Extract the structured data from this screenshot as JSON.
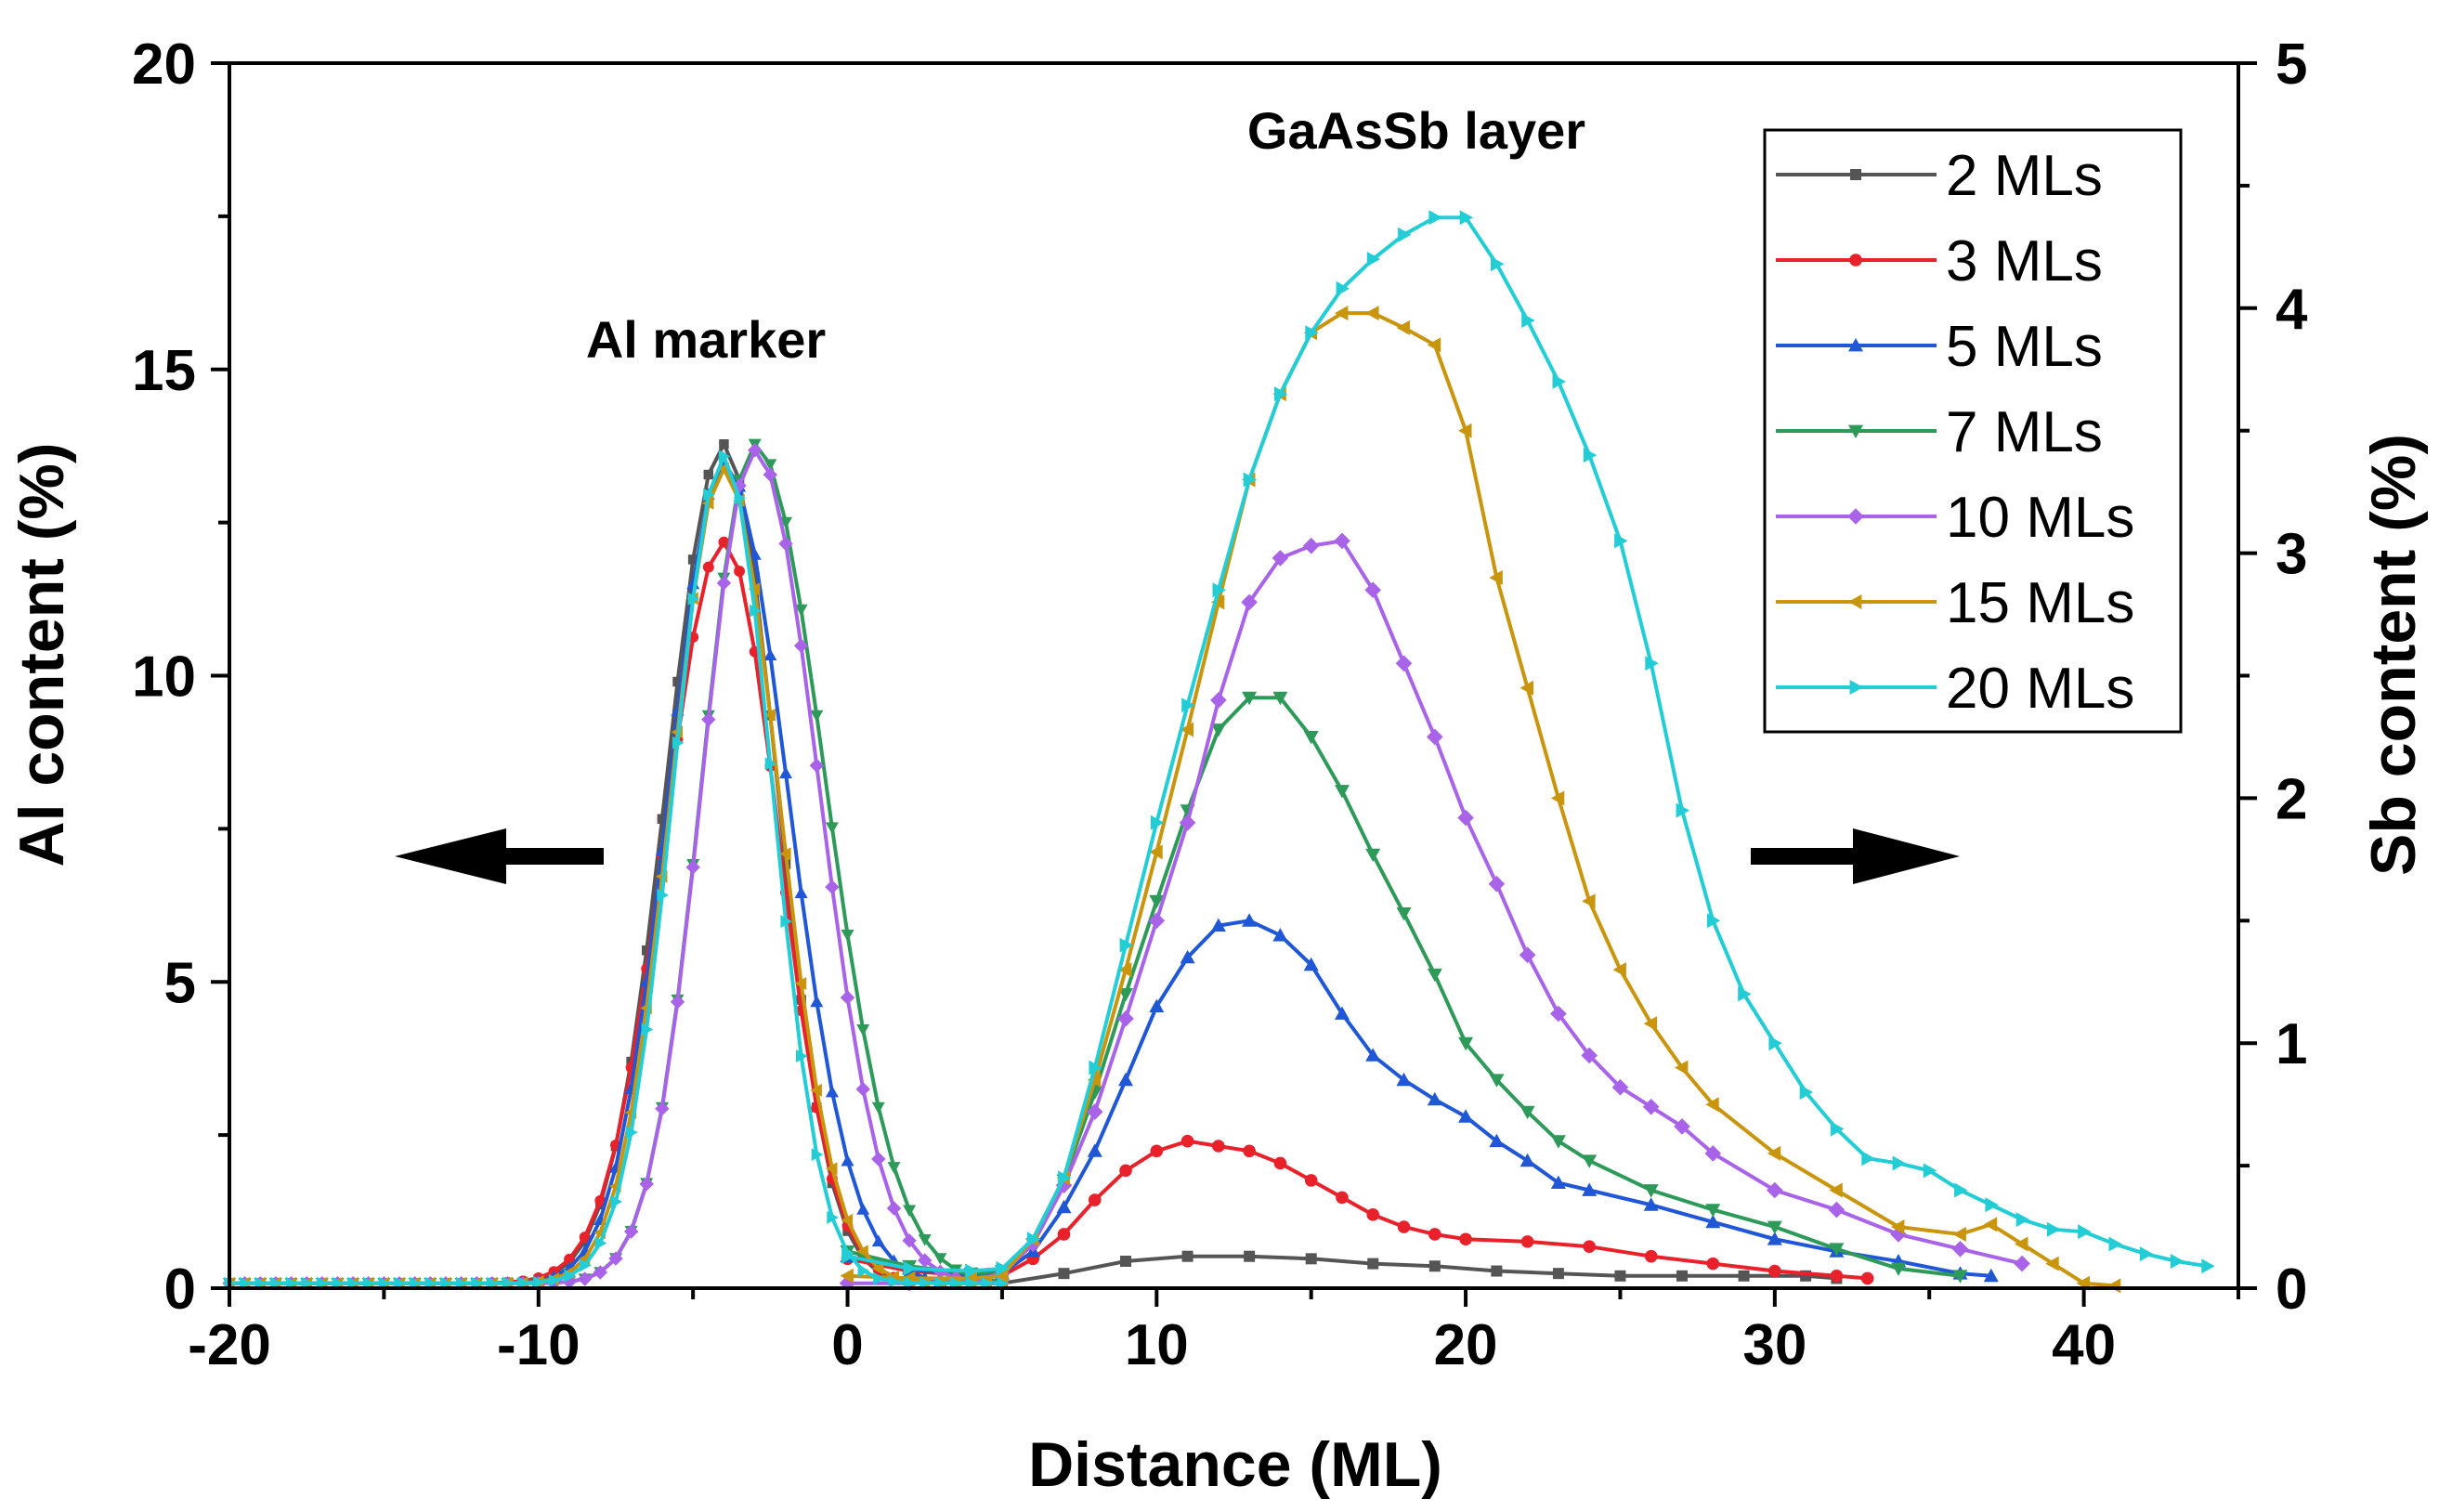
{
  "chart_data": {
    "type": "line",
    "title": "",
    "xlabel": "Distance (ML)",
    "ylabel_left": "Al content (%)",
    "ylabel_right": "Sb content (%)",
    "xlim": [
      -20,
      45
    ],
    "ylim_left": [
      0,
      20
    ],
    "ylim_right": [
      0,
      5
    ],
    "x_ticks": [
      -20,
      -10,
      0,
      10,
      20,
      30,
      40
    ],
    "y_left_ticks": [
      0,
      5,
      10,
      15,
      20
    ],
    "y_right_ticks": [
      0,
      1,
      2,
      3,
      4,
      5
    ],
    "legend_position": "top-right",
    "annotations": [
      {
        "text": "Al marker"
      },
      {
        "text": "GaAsSb layer"
      }
    ],
    "arrows": [
      {
        "direction": "left",
        "meaning": "Al content uses left axis"
      },
      {
        "direction": "right",
        "meaning": "Sb content uses right axis"
      }
    ],
    "series": [
      {
        "name": "2 MLs",
        "color": "#555555",
        "marker": "square",
        "al_marker": {
          "peak_x": -4,
          "peak": 13.7,
          "w_left": 2.6,
          "w_right": 2.4,
          "x_start": -20,
          "x_end": 5
        },
        "sb_layer": [
          [
            5,
            0.02
          ],
          [
            7,
            0.06
          ],
          [
            9,
            0.11
          ],
          [
            11,
            0.13
          ],
          [
            13,
            0.13
          ],
          [
            15,
            0.12
          ],
          [
            17,
            0.1
          ],
          [
            19,
            0.09
          ],
          [
            21,
            0.07
          ],
          [
            23,
            0.06
          ],
          [
            25,
            0.05
          ],
          [
            27,
            0.05
          ],
          [
            29,
            0.05
          ],
          [
            31,
            0.05
          ],
          [
            32,
            0.04
          ]
        ]
      },
      {
        "name": "3 MLs",
        "color": "#e8212b",
        "marker": "circle",
        "al_marker": {
          "peak_x": -4,
          "peak": 12.1,
          "w_left": 2.7,
          "w_right": 2.5,
          "x_start": -20,
          "x_end": 5
        },
        "sb_layer": [
          [
            0,
            0.12
          ],
          [
            2,
            0.07
          ],
          [
            4,
            0.05
          ],
          [
            5,
            0.05
          ],
          [
            6,
            0.12
          ],
          [
            7,
            0.22
          ],
          [
            8,
            0.36
          ],
          [
            9,
            0.48
          ],
          [
            10,
            0.56
          ],
          [
            11,
            0.6
          ],
          [
            12,
            0.58
          ],
          [
            13,
            0.56
          ],
          [
            14,
            0.51
          ],
          [
            15,
            0.44
          ],
          [
            16,
            0.37
          ],
          [
            17,
            0.3
          ],
          [
            18,
            0.25
          ],
          [
            19,
            0.22
          ],
          [
            20,
            0.2
          ],
          [
            22,
            0.19
          ],
          [
            24,
            0.17
          ],
          [
            26,
            0.13
          ],
          [
            28,
            0.1
          ],
          [
            30,
            0.07
          ],
          [
            32,
            0.05
          ],
          [
            33,
            0.04
          ]
        ]
      },
      {
        "name": "5 MLs",
        "color": "#1f57d6",
        "marker": "triangle-up",
        "al_marker": {
          "peak_x": -4,
          "peak": 13.4,
          "w_left": 2.5,
          "w_right": 2.9,
          "x_start": -20,
          "x_end": 5
        },
        "sb_layer": [
          [
            0,
            0.13
          ],
          [
            2,
            0.08
          ],
          [
            4,
            0.05
          ],
          [
            5,
            0.06
          ],
          [
            6,
            0.15
          ],
          [
            7,
            0.33
          ],
          [
            8,
            0.56
          ],
          [
            9,
            0.85
          ],
          [
            10,
            1.15
          ],
          [
            11,
            1.35
          ],
          [
            12,
            1.48
          ],
          [
            13,
            1.5
          ],
          [
            14,
            1.44
          ],
          [
            15,
            1.32
          ],
          [
            16,
            1.12
          ],
          [
            17,
            0.95
          ],
          [
            18,
            0.85
          ],
          [
            19,
            0.77
          ],
          [
            20,
            0.7
          ],
          [
            21,
            0.6
          ],
          [
            22,
            0.52
          ],
          [
            23,
            0.43
          ],
          [
            24,
            0.4
          ],
          [
            26,
            0.34
          ],
          [
            28,
            0.27
          ],
          [
            30,
            0.2
          ],
          [
            32,
            0.15
          ],
          [
            34,
            0.11
          ],
          [
            36,
            0.06
          ],
          [
            37,
            0.05
          ]
        ]
      },
      {
        "name": "7 MLs",
        "color": "#2e9a5a",
        "marker": "triangle-down",
        "al_marker": {
          "peak_x": -3,
          "peak": 13.7,
          "w_left": 2.4,
          "w_right": 3.2,
          "x_start": -20,
          "x_end": 5
        },
        "sb_layer": [
          [
            0,
            0.15
          ],
          [
            2,
            0.09
          ],
          [
            4,
            0.06
          ],
          [
            5,
            0.07
          ],
          [
            6,
            0.18
          ],
          [
            7,
            0.44
          ],
          [
            8,
            0.8
          ],
          [
            9,
            1.2
          ],
          [
            10,
            1.58
          ],
          [
            11,
            1.95
          ],
          [
            12,
            2.28
          ],
          [
            13,
            2.41
          ],
          [
            14,
            2.41
          ],
          [
            15,
            2.25
          ],
          [
            16,
            2.03
          ],
          [
            17,
            1.77
          ],
          [
            18,
            1.53
          ],
          [
            19,
            1.28
          ],
          [
            20,
            1.0
          ],
          [
            21,
            0.85
          ],
          [
            22,
            0.72
          ],
          [
            23,
            0.6
          ],
          [
            24,
            0.52
          ],
          [
            26,
            0.4
          ],
          [
            28,
            0.32
          ],
          [
            30,
            0.25
          ],
          [
            32,
            0.16
          ],
          [
            34,
            0.08
          ],
          [
            36,
            0.05
          ]
        ]
      },
      {
        "name": "10 MLs",
        "color": "#a963e8",
        "marker": "diamond",
        "al_marker": {
          "peak_x": -3,
          "peak": 13.6,
          "w_left": 2.4,
          "w_right": 2.9,
          "x_start": -20,
          "x_end": 5
        },
        "sb_layer": [
          [
            0,
            0.02
          ],
          [
            2,
            0.02
          ],
          [
            4,
            0.03
          ],
          [
            5,
            0.06
          ],
          [
            6,
            0.18
          ],
          [
            7,
            0.42
          ],
          [
            8,
            0.72
          ],
          [
            9,
            1.1
          ],
          [
            10,
            1.5
          ],
          [
            11,
            1.9
          ],
          [
            12,
            2.4
          ],
          [
            13,
            2.8
          ],
          [
            14,
            2.98
          ],
          [
            15,
            3.03
          ],
          [
            16,
            3.05
          ],
          [
            17,
            2.85
          ],
          [
            18,
            2.55
          ],
          [
            19,
            2.25
          ],
          [
            20,
            1.92
          ],
          [
            21,
            1.65
          ],
          [
            22,
            1.36
          ],
          [
            23,
            1.12
          ],
          [
            24,
            0.95
          ],
          [
            25,
            0.82
          ],
          [
            26,
            0.74
          ],
          [
            27,
            0.66
          ],
          [
            28,
            0.55
          ],
          [
            30,
            0.4
          ],
          [
            32,
            0.32
          ],
          [
            34,
            0.22
          ],
          [
            36,
            0.16
          ],
          [
            38,
            0.1
          ]
        ]
      },
      {
        "name": "15 MLs",
        "color": "#c9950c",
        "marker": "triangle-left",
        "al_marker": {
          "peak_x": -4,
          "peak": 13.3,
          "w_left": 2.4,
          "w_right": 2.5,
          "x_start": -20,
          "x_end": 5
        },
        "sb_layer": [
          [
            0,
            0.05
          ],
          [
            2,
            0.04
          ],
          [
            4,
            0.04
          ],
          [
            5,
            0.05
          ],
          [
            6,
            0.2
          ],
          [
            7,
            0.45
          ],
          [
            8,
            0.85
          ],
          [
            9,
            1.3
          ],
          [
            10,
            1.78
          ],
          [
            11,
            2.28
          ],
          [
            12,
            2.8
          ],
          [
            13,
            3.3
          ],
          [
            14,
            3.65
          ],
          [
            15,
            3.9
          ],
          [
            16,
            3.98
          ],
          [
            17,
            3.98
          ],
          [
            18,
            3.92
          ],
          [
            19,
            3.85
          ],
          [
            20,
            3.5
          ],
          [
            21,
            2.9
          ],
          [
            22,
            2.45
          ],
          [
            23,
            2.0
          ],
          [
            24,
            1.58
          ],
          [
            25,
            1.3
          ],
          [
            26,
            1.08
          ],
          [
            27,
            0.9
          ],
          [
            28,
            0.75
          ],
          [
            30,
            0.55
          ],
          [
            32,
            0.4
          ],
          [
            34,
            0.25
          ],
          [
            36,
            0.22
          ],
          [
            37,
            0.26
          ],
          [
            38,
            0.18
          ],
          [
            39,
            0.1
          ],
          [
            40,
            0.02
          ],
          [
            41,
            0.01
          ]
        ]
      },
      {
        "name": "20 MLs",
        "color": "#22cdd6",
        "marker": "triangle-right",
        "al_marker": {
          "peak_x": -4,
          "peak": 13.5,
          "w_left": 2.3,
          "w_right": 2.2,
          "x_start": -20,
          "x_end": 5
        },
        "sb_layer": [
          [
            0,
            0.13
          ],
          [
            2,
            0.08
          ],
          [
            4,
            0.07
          ],
          [
            5,
            0.08
          ],
          [
            6,
            0.2
          ],
          [
            7,
            0.45
          ],
          [
            8,
            0.9
          ],
          [
            9,
            1.4
          ],
          [
            10,
            1.9
          ],
          [
            11,
            2.38
          ],
          [
            12,
            2.85
          ],
          [
            13,
            3.3
          ],
          [
            14,
            3.65
          ],
          [
            15,
            3.9
          ],
          [
            16,
            4.08
          ],
          [
            17,
            4.2
          ],
          [
            18,
            4.3
          ],
          [
            19,
            4.37
          ],
          [
            20,
            4.37
          ],
          [
            21,
            4.18
          ],
          [
            22,
            3.95
          ],
          [
            23,
            3.7
          ],
          [
            24,
            3.4
          ],
          [
            25,
            3.05
          ],
          [
            26,
            2.55
          ],
          [
            27,
            1.95
          ],
          [
            28,
            1.5
          ],
          [
            29,
            1.2
          ],
          [
            30,
            1.0
          ],
          [
            31,
            0.8
          ],
          [
            32,
            0.65
          ],
          [
            33,
            0.53
          ],
          [
            34,
            0.51
          ],
          [
            35,
            0.48
          ],
          [
            36,
            0.4
          ],
          [
            37,
            0.34
          ],
          [
            38,
            0.28
          ],
          [
            39,
            0.24
          ],
          [
            40,
            0.23
          ],
          [
            41,
            0.18
          ],
          [
            42,
            0.14
          ],
          [
            43,
            0.11
          ],
          [
            44,
            0.09
          ]
        ]
      }
    ]
  }
}
